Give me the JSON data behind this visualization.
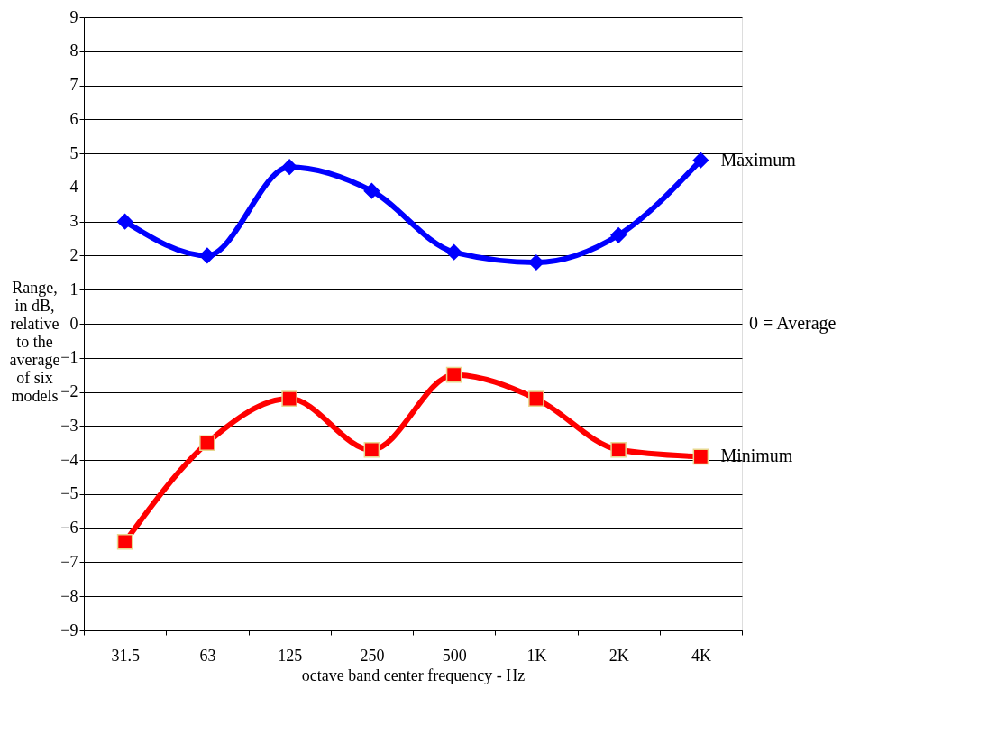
{
  "chart_data": {
    "type": "line",
    "xlabel": "octave band center frequency - Hz",
    "ylabel": "Range,\nin dB,\nrelative\nto the\naverage\nof six\nmodels",
    "categories": [
      "31.5",
      "63",
      "125",
      "250",
      "500",
      "1K",
      "2K",
      "4K"
    ],
    "series": [
      {
        "name": "Maximum",
        "color": "#0000ff",
        "marker": "diamond",
        "values": [
          3.0,
          2.0,
          4.6,
          3.9,
          2.1,
          1.8,
          2.6,
          4.8
        ]
      },
      {
        "name": "Minimum",
        "color": "#ff0000",
        "marker": "square",
        "values": [
          -6.4,
          -3.5,
          -2.2,
          -3.7,
          -1.5,
          -2.2,
          -3.7,
          -3.9
        ]
      }
    ],
    "annotations": [
      "0 = Average"
    ],
    "ylim": [
      -9,
      9
    ],
    "yticks": [
      -9,
      -8,
      -7,
      -6,
      -5,
      -4,
      -3,
      -2,
      -1,
      0,
      1,
      2,
      3,
      4,
      5,
      6,
      7,
      8,
      9
    ],
    "grid": "y",
    "line_style": "solid"
  }
}
